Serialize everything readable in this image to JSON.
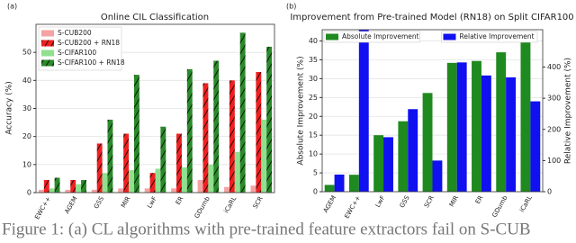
{
  "chart_data": [
    {
      "type": "bar",
      "panel": "(a)",
      "title": "Online CIL Classification",
      "ylabel": "Accuracy (%)",
      "categories": [
        "EWC++",
        "AGEM",
        "GSS",
        "MIR",
        "LwF",
        "ER",
        "GDumb",
        "iCaRL",
        "SCR"
      ],
      "series": [
        {
          "name": "S-CUB200",
          "color": "#f4a3a3",
          "hatch": false,
          "values": [
            1,
            1,
            1,
            1.5,
            1.5,
            1.5,
            4.5,
            2,
            2.5
          ]
        },
        {
          "name": "S-CUB200 + RN18",
          "color": "#f02020",
          "hatch": true,
          "values": [
            4.5,
            4.5,
            17.5,
            21,
            7,
            21,
            39,
            40,
            43
          ]
        },
        {
          "name": "S-CIFAR100",
          "color": "#90e090",
          "hatch": false,
          "values": [
            1.5,
            3,
            7,
            8,
            8.5,
            9,
            10,
            14.5,
            26
          ]
        },
        {
          "name": "S-CIFAR100 + RN18",
          "color": "#2a8a2a",
          "hatch": true,
          "values": [
            5.3,
            4.5,
            26,
            42,
            23.5,
            44,
            47,
            57,
            52
          ]
        }
      ],
      "ylim": [
        0,
        60
      ],
      "yticks": [
        0,
        10,
        20,
        30,
        40,
        50
      ],
      "grid": true,
      "legend": "upper left"
    },
    {
      "type": "bar",
      "panel": "(b)",
      "title": "Improvement from Pre-trained Model (RN18) on Split CIFAR100",
      "ylabel": "Absolute Improvement (%)",
      "y2label": "Relative Improvement (%)",
      "categories": [
        "AGEM",
        "EWC++",
        "LwF",
        "GSS",
        "SCR",
        "MIR",
        "ER",
        "GDumb",
        "iCaRL"
      ],
      "series": [
        {
          "name": "Absolute Improvement",
          "color": "#1f8a1f",
          "hatch": false,
          "values": [
            1.8,
            4.5,
            15,
            18.7,
            26.2,
            34.2,
            34.7,
            37,
            42.5
          ]
        },
        {
          "name": "Relative Improvement",
          "color": "#1010f0",
          "hatch": false,
          "axis": "y2",
          "values": [
            55,
            520,
            175,
            265,
            100,
            415,
            373,
            367,
            290
          ]
        }
      ],
      "ylim": [
        0,
        43
      ],
      "yticks": [
        0,
        5,
        10,
        15,
        20,
        25,
        30,
        35,
        40
      ],
      "y2lim": [
        0,
        520
      ],
      "y2ticks": [
        0,
        100,
        200,
        300,
        400
      ],
      "grid": true,
      "legend": "upper"
    }
  ],
  "caption": "Figure 1: (a) CL algorithms with pre-trained feature extractors fail on S-CUB"
}
